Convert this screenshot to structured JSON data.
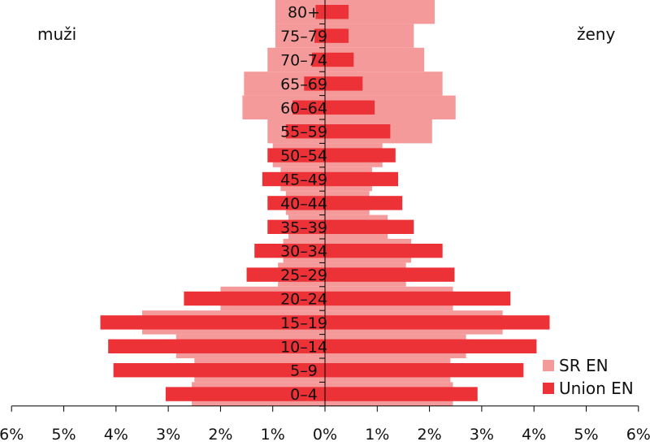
{
  "labels": {
    "left": "muži",
    "right": "ženy"
  },
  "legend": [
    {
      "name": "SR EN",
      "color": "#f59a9a"
    },
    {
      "name": "Union EN",
      "color": "#ec3237"
    }
  ],
  "chart_data": {
    "type": "bar",
    "orientation": "horizontal-population-pyramid",
    "categories": [
      "80+",
      "75–79",
      "70–74",
      "65–69",
      "60–64",
      "55–59",
      "50–54",
      "45–49",
      "40–44",
      "35–39",
      "30–34",
      "25–29",
      "20–24",
      "15–19",
      "10–14",
      "5–9",
      "0–4"
    ],
    "series": [
      {
        "name": "SR EN",
        "color": "#f59a9a",
        "male": [
          0.95,
          0.95,
          1.1,
          1.55,
          1.58,
          1.1,
          1.0,
          0.85,
          0.75,
          0.7,
          0.8,
          0.9,
          2.0,
          3.5,
          2.85,
          2.5,
          2.55
        ],
        "female": [
          2.1,
          1.7,
          1.9,
          2.25,
          2.5,
          2.05,
          1.1,
          0.9,
          0.85,
          1.2,
          1.65,
          1.55,
          2.45,
          3.4,
          2.7,
          2.4,
          2.45
        ]
      },
      {
        "name": "Union EN",
        "color": "#ec3237",
        "male": [
          0.18,
          0.2,
          0.25,
          0.4,
          0.62,
          0.75,
          1.1,
          1.2,
          1.1,
          1.1,
          1.35,
          1.5,
          2.7,
          4.3,
          4.15,
          4.05,
          3.05
        ],
        "female": [
          0.45,
          0.45,
          0.55,
          0.72,
          0.95,
          1.25,
          1.35,
          1.4,
          1.48,
          1.7,
          2.25,
          2.48,
          3.55,
          4.3,
          4.05,
          3.8,
          2.92
        ]
      }
    ],
    "xlim": [
      -6,
      6
    ],
    "xticks": [
      "6%",
      "5%",
      "4%",
      "3%",
      "2%",
      "1%",
      "0%",
      "1%",
      "2%",
      "3%",
      "4%",
      "5%",
      "6%"
    ]
  }
}
